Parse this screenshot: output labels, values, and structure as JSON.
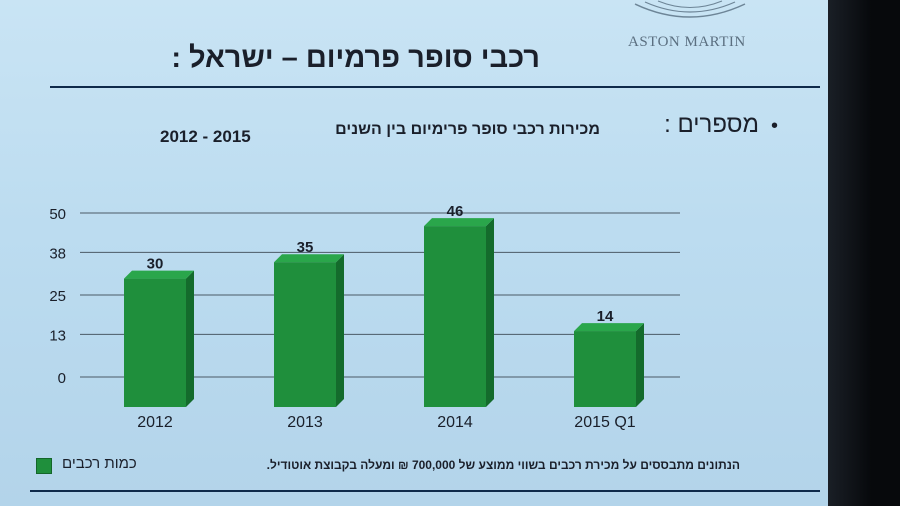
{
  "slide": {
    "title": "רכבי סופר פרמיום – ישראל :",
    "logo_text": "ASTON MARTIN",
    "bullet": "מספרים :",
    "footnote": "הנתונים מתבססים על מכירת רכבים בשווי ממוצע של 700,000 ₪ ומעלה בקבוצת אוטודיל."
  },
  "chart_data": {
    "type": "bar",
    "title_line1": "מכירות רכבי סופר פרימיום בין השנים",
    "title_line2": "2012 - 2015",
    "categories": [
      "2012",
      "2013",
      "2014",
      "2015 Q1"
    ],
    "series": [
      {
        "name": "כמות רכבים",
        "values": [
          30,
          35,
          46,
          14
        ]
      }
    ],
    "y_ticks": [
      "50",
      "38",
      "25",
      "13",
      "0"
    ],
    "ylim": [
      0,
      50
    ],
    "grid": true,
    "legend_position": "bottom-left",
    "bar_color": "#1f8f3c"
  }
}
